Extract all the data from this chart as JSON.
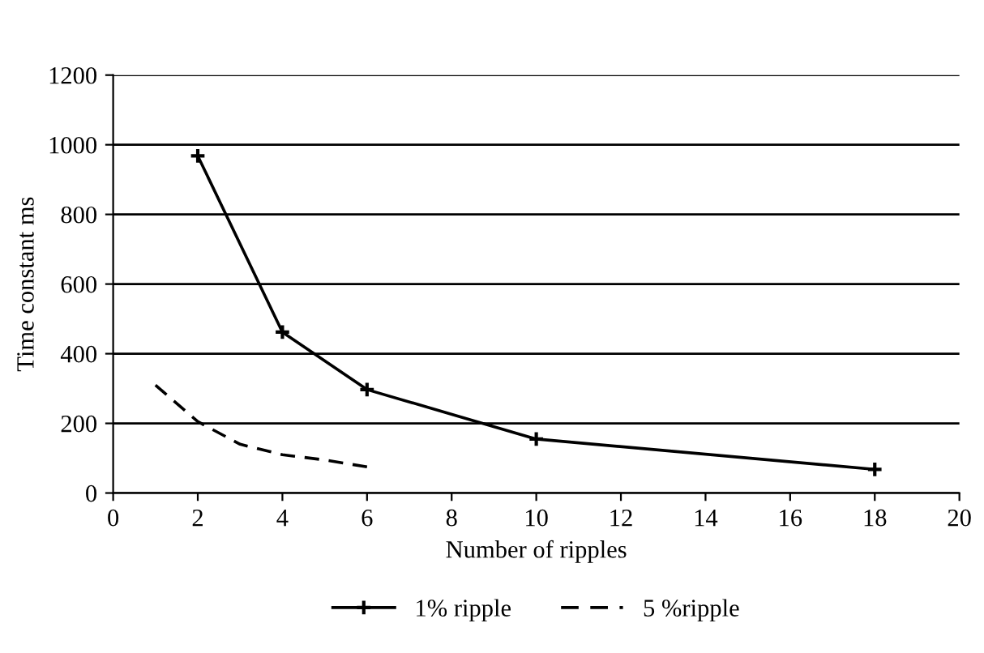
{
  "chart_data": {
    "type": "line",
    "xlabel": "Number of ripples",
    "ylabel": "Time constant ms",
    "xlim": [
      0,
      20
    ],
    "xticks": [
      0,
      2,
      4,
      6,
      8,
      10,
      12,
      14,
      16,
      18,
      20
    ],
    "ylim": [
      0,
      1200
    ],
    "yticks": [
      0,
      200,
      400,
      600,
      800,
      1000,
      1200
    ],
    "grid": "y",
    "legend": "bottom",
    "series": [
      {
        "name": "1% ripple",
        "color": "#000000",
        "x": [
          2,
          4,
          6,
          10,
          18
        ],
        "values": [
          968,
          462,
          297,
          155,
          68
        ],
        "marker": "cross",
        "line_style": "solid"
      },
      {
        "name": "5 %ripple",
        "color": "#000000",
        "x": [
          1,
          2,
          3,
          4,
          5,
          6
        ],
        "values": [
          310,
          205,
          140,
          110,
          95,
          75
        ],
        "marker": "none",
        "line_style": "dashed"
      }
    ]
  }
}
